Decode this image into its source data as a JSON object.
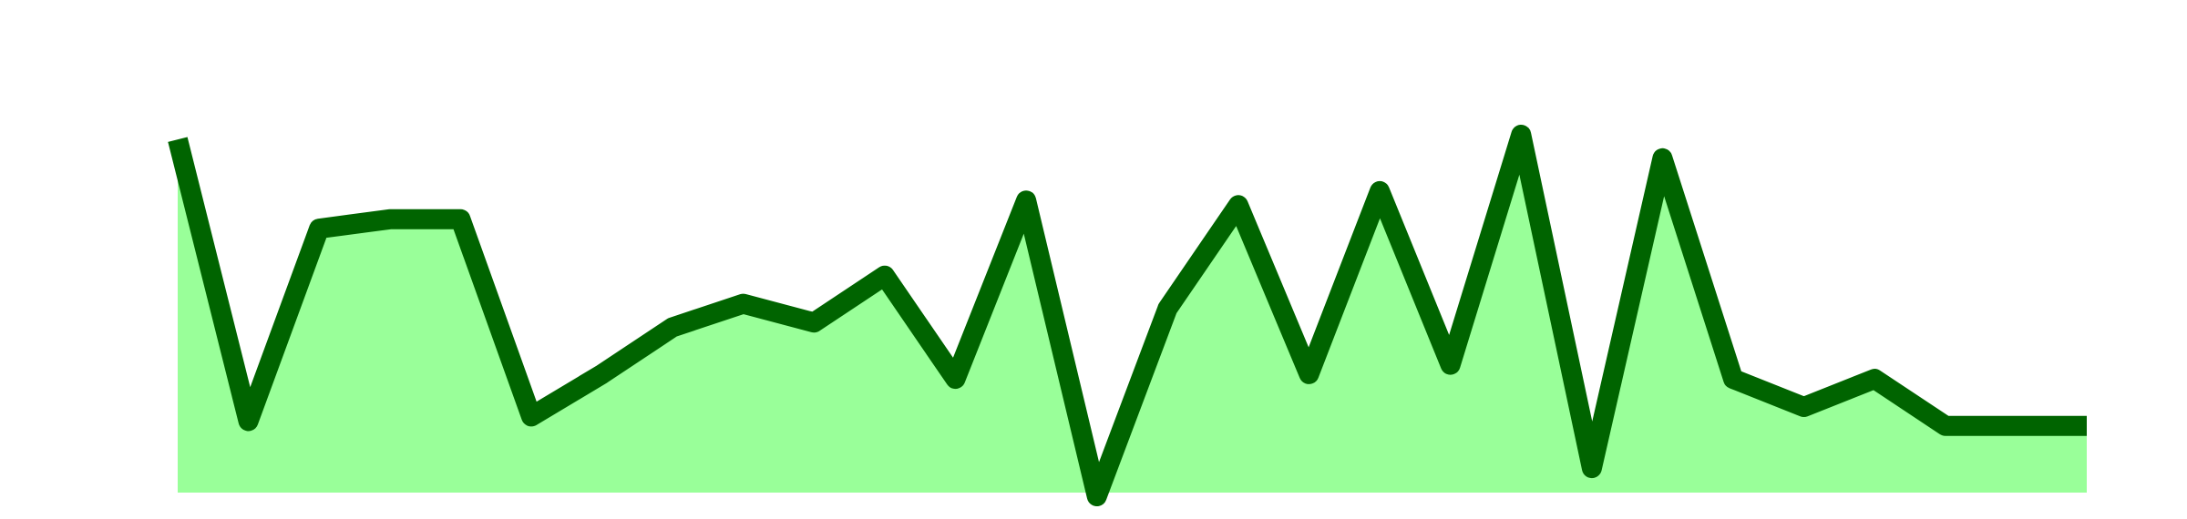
{
  "chart_data": {
    "type": "area",
    "title": "",
    "xlabel": "",
    "ylabel": "",
    "x": [
      0,
      1,
      2,
      3,
      4,
      5,
      6,
      7,
      8,
      9,
      10,
      11,
      12,
      13,
      14,
      15,
      16,
      17,
      18,
      19,
      20,
      21,
      22,
      23,
      24,
      25,
      26,
      27
    ],
    "series": [
      {
        "values": [
          76,
          16,
          57,
          59,
          59,
          17,
          26,
          36,
          41,
          37,
          47,
          25,
          63,
          0,
          40,
          62,
          26,
          65,
          28,
          77,
          6,
          72,
          25,
          19,
          25,
          15,
          15,
          15
        ]
      }
    ],
    "ylim": [
      0,
      80
    ],
    "grid": false,
    "legend": "none",
    "colors": {
      "fill": "#99ff99",
      "line": "#006400",
      "background": "#ffffff"
    }
  }
}
